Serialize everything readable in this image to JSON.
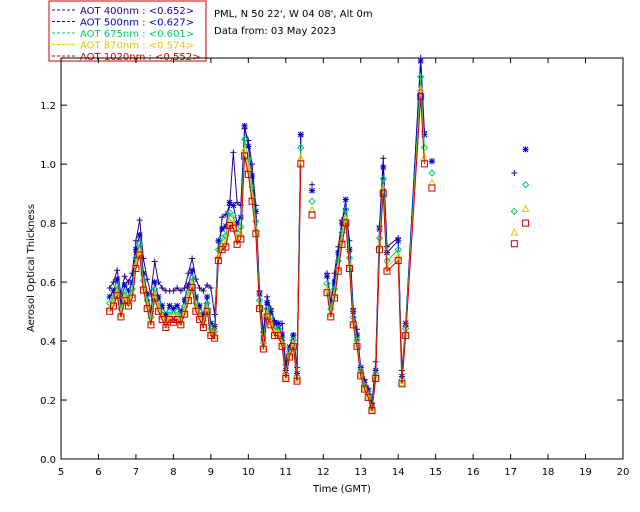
{
  "info": {
    "site": "PML, N 50 22', W 04 08', Alt 0m",
    "date": "Data from: 03 May 2023"
  },
  "chart_data": {
    "type": "line",
    "xlabel": "Time (GMT)",
    "ylabel": "Aerosol Optical Thickness",
    "xlim": [
      5,
      20
    ],
    "ylim": [
      0.0,
      1.36
    ],
    "xticks": [
      "5",
      "6",
      "7",
      "8",
      "9",
      "10",
      "11",
      "12",
      "13",
      "14",
      "15",
      "16",
      "17",
      "18",
      "19",
      "20"
    ],
    "yticks": [
      "0.0",
      "0.2",
      "0.4",
      "0.6",
      "0.8",
      "1.0",
      "1.2"
    ],
    "grid": false,
    "legend_position": "top-left-outside",
    "series": [
      {
        "name": "AOT  400nm : <0.652>",
        "color": "#2a0088",
        "marker": "plus",
        "segments": [
          [
            [
              6.3,
              0.58
            ],
            [
              6.4,
              0.6
            ],
            [
              6.5,
              0.64
            ],
            [
              6.6,
              0.56
            ],
            [
              6.7,
              0.62
            ],
            [
              6.8,
              0.6
            ],
            [
              6.9,
              0.63
            ],
            [
              7.0,
              0.74
            ],
            [
              7.1,
              0.81
            ],
            [
              7.2,
              0.68
            ],
            [
              7.3,
              0.61
            ],
            [
              7.4,
              0.56
            ],
            [
              7.5,
              0.67
            ],
            [
              7.6,
              0.6
            ],
            [
              7.7,
              0.58
            ],
            [
              7.8,
              0.57
            ],
            [
              7.9,
              0.57
            ],
            [
              8.0,
              0.57
            ],
            [
              8.1,
              0.58
            ],
            [
              8.2,
              0.57
            ],
            [
              8.3,
              0.58
            ],
            [
              8.4,
              0.63
            ],
            [
              8.5,
              0.68
            ],
            [
              8.6,
              0.61
            ],
            [
              8.7,
              0.58
            ],
            [
              8.8,
              0.57
            ],
            [
              8.9,
              0.59
            ],
            [
              9.0,
              0.58
            ],
            [
              9.1,
              0.49
            ],
            [
              9.2,
              0.68
            ],
            [
              9.3,
              0.82
            ],
            [
              9.4,
              0.83
            ],
            [
              9.5,
              0.86
            ],
            [
              9.6,
              1.04
            ],
            [
              9.7,
              0.87
            ],
            [
              9.8,
              0.86
            ],
            [
              9.9,
              1.12
            ],
            [
              10.0,
              1.08
            ],
            [
              10.1,
              1.0
            ],
            [
              10.2,
              0.86
            ],
            [
              10.3,
              0.57
            ],
            [
              10.4,
              0.43
            ],
            [
              10.5,
              0.55
            ],
            [
              10.6,
              0.51
            ],
            [
              10.7,
              0.47
            ],
            [
              10.8,
              0.44
            ],
            [
              10.9,
              0.46
            ],
            [
              11.0,
              0.32
            ],
            [
              11.1,
              0.38
            ],
            [
              11.2,
              0.42
            ],
            [
              11.3,
              0.31
            ],
            [
              11.4,
              1.1
            ]
          ],
          [
            [
              11.7,
              0.93
            ]
          ],
          [
            [
              12.1,
              0.63
            ],
            [
              12.2,
              0.53
            ],
            [
              12.3,
              0.63
            ],
            [
              12.4,
              0.72
            ],
            [
              12.5,
              0.81
            ],
            [
              12.6,
              0.85
            ],
            [
              12.7,
              0.74
            ],
            [
              12.8,
              0.51
            ],
            [
              12.9,
              0.44
            ],
            [
              13.0,
              0.31
            ],
            [
              13.1,
              0.27
            ],
            [
              13.2,
              0.24
            ],
            [
              13.3,
              0.19
            ],
            [
              13.4,
              0.33
            ],
            [
              13.5,
              0.79
            ],
            [
              13.6,
              1.02
            ],
            [
              13.7,
              0.72
            ],
            [
              14.0,
              0.75
            ],
            [
              14.1,
              0.3
            ],
            [
              14.2,
              0.45
            ],
            [
              14.6,
              1.36
            ],
            [
              14.7,
              1.11
            ]
          ],
          [
            [
              14.9,
              1.01
            ]
          ]
        ],
        "tail": [
          [
            17.1,
            0.97
          ]
        ]
      },
      {
        "name": "AOT  500nm : <0.627>",
        "color": "#0000cc",
        "marker": "star",
        "segments": [
          [
            [
              6.3,
              0.55
            ],
            [
              6.4,
              0.57
            ],
            [
              6.5,
              0.61
            ],
            [
              6.6,
              0.53
            ],
            [
              6.7,
              0.59
            ],
            [
              6.8,
              0.57
            ],
            [
              6.9,
              0.6
            ],
            [
              7.0,
              0.71
            ],
            [
              7.1,
              0.76
            ],
            [
              7.2,
              0.63
            ],
            [
              7.3,
              0.56
            ],
            [
              7.4,
              0.5
            ],
            [
              7.5,
              0.6
            ],
            [
              7.6,
              0.55
            ],
            [
              7.7,
              0.52
            ],
            [
              7.8,
              0.49
            ],
            [
              7.9,
              0.52
            ],
            [
              8.0,
              0.51
            ],
            [
              8.1,
              0.52
            ],
            [
              8.2,
              0.5
            ],
            [
              8.3,
              0.54
            ],
            [
              8.4,
              0.59
            ],
            [
              8.5,
              0.64
            ],
            [
              8.6,
              0.55
            ],
            [
              8.7,
              0.52
            ],
            [
              8.8,
              0.49
            ],
            [
              8.9,
              0.55
            ],
            [
              9.0,
              0.46
            ],
            [
              9.1,
              0.45
            ],
            [
              9.2,
              0.74
            ],
            [
              9.3,
              0.78
            ],
            [
              9.4,
              0.79
            ],
            [
              9.5,
              0.87
            ],
            [
              9.6,
              0.86
            ],
            [
              9.7,
              0.8
            ],
            [
              9.8,
              0.82
            ],
            [
              9.9,
              1.13
            ],
            [
              10.0,
              1.06
            ],
            [
              10.1,
              0.96
            ],
            [
              10.2,
              0.84
            ],
            [
              10.3,
              0.56
            ],
            [
              10.4,
              0.41
            ],
            [
              10.5,
              0.53
            ],
            [
              10.6,
              0.5
            ],
            [
              10.7,
              0.46
            ],
            [
              10.8,
              0.46
            ],
            [
              10.9,
              0.42
            ],
            [
              11.0,
              0.3
            ],
            [
              11.1,
              0.38
            ],
            [
              11.2,
              0.42
            ],
            [
              11.3,
              0.29
            ],
            [
              11.4,
              1.1
            ]
          ],
          [
            [
              11.7,
              0.91
            ]
          ],
          [
            [
              12.1,
              0.62
            ],
            [
              12.2,
              0.53
            ],
            [
              12.3,
              0.6
            ],
            [
              12.4,
              0.7
            ],
            [
              12.5,
              0.8
            ],
            [
              12.6,
              0.88
            ],
            [
              12.7,
              0.71
            ],
            [
              12.8,
              0.5
            ],
            [
              12.9,
              0.42
            ],
            [
              13.0,
              0.31
            ],
            [
              13.1,
              0.26
            ],
            [
              13.2,
              0.23
            ],
            [
              13.3,
              0.18
            ],
            [
              13.4,
              0.3
            ],
            [
              13.5,
              0.78
            ],
            [
              13.6,
              0.99
            ],
            [
              13.7,
              0.7
            ],
            [
              14.0,
              0.74
            ],
            [
              14.1,
              0.28
            ],
            [
              14.2,
              0.46
            ],
            [
              14.6,
              1.35
            ],
            [
              14.7,
              1.1
            ]
          ],
          [
            [
              14.9,
              1.01
            ]
          ]
        ],
        "tail": [
          [
            17.4,
            1.05
          ]
        ]
      }
    ]
  },
  "legend": {
    "entries": [
      {
        "label": "AOT  400nm : <0.652>",
        "color": "#2a0088"
      },
      {
        "label": "AOT  500nm : <0.627>",
        "color": "#0000cc"
      },
      {
        "label": "AOT  675nm : <0.601>",
        "color": "#00cc66"
      },
      {
        "label": "AOT  870nm : <0.574>",
        "color": "#e6c200"
      },
      {
        "label": "AOT 1020nm : <0.552>",
        "color": "#cc0000"
      }
    ]
  }
}
